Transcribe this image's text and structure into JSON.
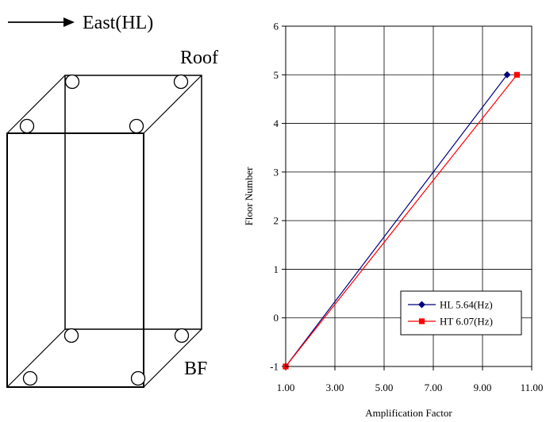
{
  "diagram": {
    "direction_label": "East(HL)",
    "top_label": "Roof",
    "bottom_label": "BF"
  },
  "chart_data": {
    "type": "line",
    "xlabel": "Amplification Factor",
    "ylabel": "Floor Number",
    "xlim": [
      1.0,
      11.0
    ],
    "ylim": [
      -1,
      6
    ],
    "xticks": [
      "1.00",
      "3.00",
      "5.00",
      "7.00",
      "9.00",
      "11.00"
    ],
    "yticks": [
      "-1",
      "0",
      "1",
      "2",
      "3",
      "4",
      "5",
      "6"
    ],
    "grid": true,
    "legend_position": "bottom-right",
    "series": [
      {
        "name": "HL 5.64(Hz)",
        "color": "#00007f",
        "marker": "diamond",
        "points": [
          {
            "x": 1.0,
            "y": -1
          },
          {
            "x": 10.0,
            "y": 5
          }
        ]
      },
      {
        "name": "HT 6.07(Hz)",
        "color": "#ff0000",
        "marker": "square",
        "points": [
          {
            "x": 1.0,
            "y": -1
          },
          {
            "x": 10.4,
            "y": 5
          }
        ]
      }
    ]
  }
}
